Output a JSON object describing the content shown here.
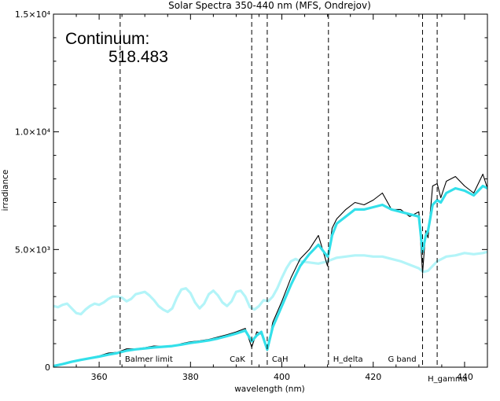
{
  "chart_data": {
    "type": "line",
    "title": "Solar Spectra 350-440 nm (MFS, Ondrejov)",
    "xlabel": "wavelength (nm)",
    "ylabel": "irradiance",
    "xlim": [
      350,
      445
    ],
    "ylim": [
      0,
      15000
    ],
    "x_ticks": [
      {
        "value": 360,
        "label": "360"
      },
      {
        "value": 380,
        "label": "380"
      },
      {
        "value": 400,
        "label": "400"
      },
      {
        "value": 420,
        "label": "420"
      },
      {
        "value": 440,
        "label": "440"
      }
    ],
    "y_ticks": [
      {
        "value": 0,
        "label": "0"
      },
      {
        "value": 5000,
        "label": "5.0×10³"
      },
      {
        "value": 10000,
        "label": "1.0×10⁴"
      },
      {
        "value": 15000,
        "label": "1.5×10⁴"
      }
    ],
    "annotation": {
      "label": "Continuum:",
      "value": "518.483"
    },
    "marker_lines": [
      {
        "x": 364.6,
        "label": "Balmer limit"
      },
      {
        "x": 393.4,
        "label": "CaK"
      },
      {
        "x": 396.8,
        "label": "CaH"
      },
      {
        "x": 410.2,
        "label": "H_delta"
      },
      {
        "x": 430.8,
        "label": "G band"
      },
      {
        "x": 434.0,
        "label": "H_gamma"
      }
    ],
    "series": [
      {
        "color": "#000000",
        "x": [
          350,
          352,
          354,
          356,
          358,
          360,
          362,
          364,
          366,
          368,
          370,
          372,
          374,
          376,
          378,
          380,
          382,
          384,
          386,
          388,
          390,
          392,
          393.4,
          394.5,
          395.5,
          396.8,
          398,
          400,
          402,
          404,
          406,
          408,
          410,
          410.2,
          411,
          412,
          414,
          416,
          418,
          420,
          422,
          424,
          426,
          428,
          430,
          430.8,
          431.5,
          432,
          433,
          434,
          434.8,
          436,
          438,
          440,
          442,
          444,
          445
        ],
        "y": [
          50,
          150,
          250,
          330,
          400,
          480,
          600,
          630,
          780,
          780,
          830,
          900,
          880,
          900,
          1000,
          1080,
          1120,
          1180,
          1280,
          1380,
          1500,
          1650,
          850,
          1500,
          1400,
          700,
          1900,
          2800,
          3800,
          4600,
          5000,
          5600,
          4300,
          4700,
          5900,
          6300,
          6700,
          7000,
          6900,
          7100,
          7400,
          6700,
          6700,
          6400,
          6600,
          4000,
          5800,
          5500,
          7700,
          7800,
          7200,
          7900,
          8100,
          7700,
          7400,
          8200,
          7600
        ]
      },
      {
        "color": "#33e0ea",
        "x": [
          350,
          352,
          354,
          356,
          358,
          360,
          362,
          364,
          366,
          368,
          370,
          372,
          374,
          376,
          378,
          380,
          382,
          384,
          386,
          388,
          390,
          392,
          393.4,
          394.5,
          395.5,
          396.8,
          398,
          400,
          402,
          404,
          406,
          408,
          410,
          410.2,
          411,
          412,
          414,
          416,
          418,
          420,
          422,
          424,
          426,
          428,
          430,
          430.8,
          431.5,
          432,
          433,
          434,
          434.8,
          436,
          438,
          440,
          442,
          444,
          445
        ],
        "y": [
          50,
          130,
          230,
          310,
          380,
          450,
          530,
          600,
          700,
          760,
          800,
          840,
          870,
          900,
          960,
          1030,
          1080,
          1140,
          1220,
          1320,
          1430,
          1560,
          1100,
          1350,
          1500,
          750,
          1700,
          2600,
          3500,
          4300,
          4800,
          5200,
          4700,
          4800,
          5600,
          6100,
          6400,
          6700,
          6700,
          6800,
          6900,
          6700,
          6600,
          6500,
          6400,
          4900,
          5600,
          5800,
          6900,
          7100,
          7000,
          7400,
          7600,
          7500,
          7300,
          7700,
          7600
        ]
      },
      {
        "color": "#b3f4f8",
        "x": [
          350,
          351,
          352,
          353,
          354,
          355,
          356,
          357,
          358,
          359,
          360,
          361,
          362,
          363,
          364,
          365,
          366,
          367,
          368,
          369,
          370,
          371,
          372,
          373,
          374,
          375,
          376,
          377,
          378,
          379,
          380,
          381,
          382,
          383,
          384,
          385,
          386,
          387,
          388,
          389,
          390,
          391,
          392,
          393,
          394,
          395,
          396,
          397,
          398,
          399,
          400,
          401,
          402,
          403,
          404,
          406,
          408,
          410,
          412,
          414,
          416,
          418,
          420,
          422,
          424,
          426,
          428,
          430,
          431,
          432,
          434,
          436,
          438,
          440,
          442,
          444,
          445
        ],
        "y": [
          2600,
          2550,
          2650,
          2700,
          2500,
          2300,
          2250,
          2450,
          2600,
          2700,
          2650,
          2750,
          2900,
          3000,
          3000,
          2950,
          2800,
          2900,
          3100,
          3150,
          3200,
          3050,
          2850,
          2600,
          2450,
          2350,
          2500,
          2950,
          3300,
          3350,
          3150,
          2750,
          2500,
          2700,
          3100,
          3250,
          3050,
          2750,
          2600,
          2800,
          3200,
          3250,
          3000,
          2550,
          2450,
          2600,
          2850,
          2800,
          3000,
          3350,
          3800,
          4200,
          4500,
          4600,
          4500,
          4450,
          4400,
          4500,
          4650,
          4700,
          4750,
          4750,
          4700,
          4700,
          4600,
          4500,
          4350,
          4200,
          4050,
          4100,
          4500,
          4700,
          4750,
          4850,
          4800,
          4850,
          4900
        ]
      }
    ]
  }
}
